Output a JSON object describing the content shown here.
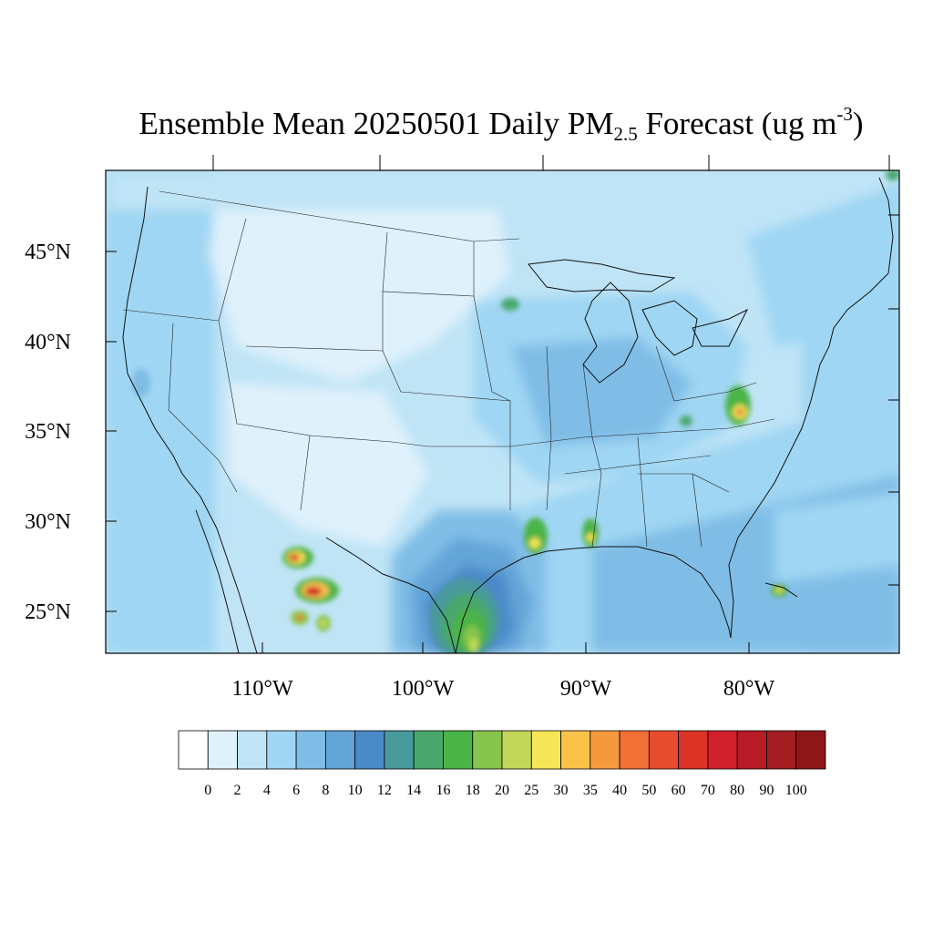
{
  "title": {
    "prefix": "Ensemble Mean 20250501 Daily PM",
    "subscript": "2.5",
    "middle": " Forecast (ug m",
    "superscript": "-3",
    "suffix": ")"
  },
  "lat_labels": [
    "45°N",
    "40°N",
    "35°N",
    "30°N",
    "25°N"
  ],
  "lon_labels": [
    "110°W",
    "100°W",
    "90°W",
    "80°W"
  ],
  "colorbar": {
    "levels": [
      "0",
      "2",
      "4",
      "6",
      "8",
      "10",
      "12",
      "14",
      "16",
      "18",
      "20",
      "25",
      "30",
      "35",
      "40",
      "50",
      "60",
      "70",
      "80",
      "90",
      "100"
    ],
    "colors": [
      "#ffffff",
      "#dff1fb",
      "#bfe4f6",
      "#9fd6f3",
      "#80bde6",
      "#64a5d8",
      "#4b8ac8",
      "#499a9c",
      "#49a76d",
      "#4bb447",
      "#86c44b",
      "#c2d75a",
      "#f6e556",
      "#f8c24b",
      "#f5993f",
      "#f26f35",
      "#e84c2e",
      "#dd3327",
      "#d11f2b",
      "#b71b25",
      "#a31d22",
      "#8d1619"
    ]
  },
  "legend_placement": "bottom"
}
